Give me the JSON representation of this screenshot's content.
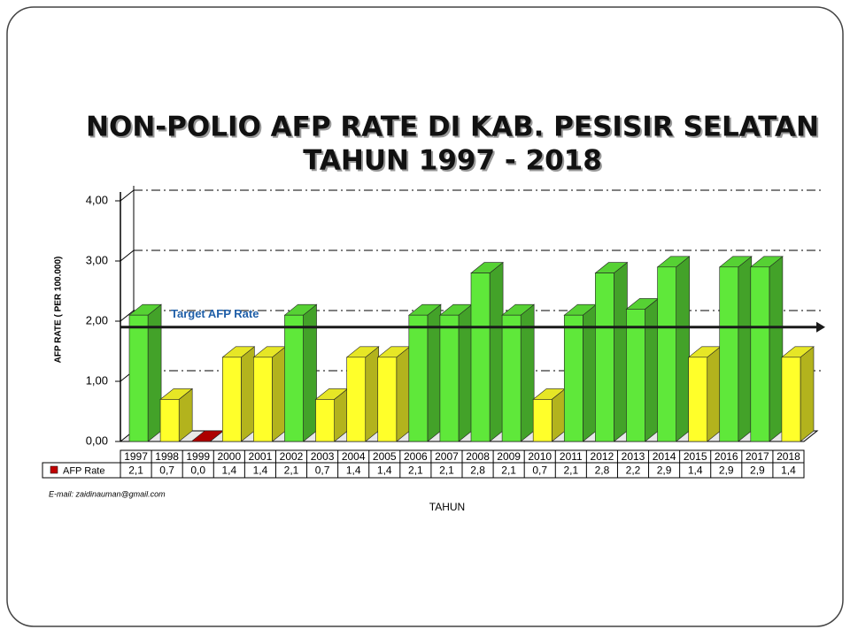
{
  "chart_data": {
    "type": "bar3d",
    "title": "NON-POLIO AFP RATE DI KAB. PESISIR SELATAN",
    "subtitle": "TAHUN 1997  -  2018",
    "x_label": "TAHUN",
    "y_label": "AFP RATE ( PER 100.000)",
    "annotation": "E-mail: zaidinauman@gmail.com",
    "categories": [
      "1997",
      "1998",
      "1999",
      "2000",
      "2001",
      "2002",
      "2003",
      "2004",
      "2005",
      "2006",
      "2007",
      "2008",
      "2009",
      "2010",
      "2011",
      "2012",
      "2013",
      "2014",
      "2015",
      "2016",
      "2017",
      "2018"
    ],
    "series": [
      {
        "name": "AFP Rate",
        "color": "#c00000",
        "values": [
          2.1,
          0.7,
          0.0,
          1.4,
          1.4,
          2.1,
          0.7,
          1.4,
          1.4,
          2.1,
          2.1,
          2.8,
          2.1,
          0.7,
          2.1,
          2.8,
          2.2,
          2.9,
          1.4,
          2.9,
          2.9,
          1.4
        ],
        "value_labels": [
          "2,1",
          "0,7",
          "0,0",
          "1,4",
          "1,4",
          "2,1",
          "0,7",
          "1,4",
          "1,4",
          "2,1",
          "2,1",
          "2,8",
          "2,1",
          "0,7",
          "2,1",
          "2,8",
          "2,2",
          "2,9",
          "1,4",
          "2,9",
          "2,9",
          "1,4"
        ],
        "bar_colors": [
          "#5fe83a",
          "#ffff2a",
          "#c00000",
          "#ffff2a",
          "#ffff2a",
          "#5fe83a",
          "#ffff2a",
          "#ffff2a",
          "#ffff2a",
          "#5fe83a",
          "#5fe83a",
          "#5fe83a",
          "#5fe83a",
          "#ffff2a",
          "#5fe83a",
          "#5fe83a",
          "#5fe83a",
          "#5fe83a",
          "#ffff2a",
          "#5fe83a",
          "#5fe83a",
          "#ffff2a"
        ]
      }
    ],
    "target": {
      "label": "Target AFP Rate",
      "value": 1.9,
      "color": "#1a1a1a"
    },
    "ylim": [
      0,
      4
    ],
    "yticks": [
      {
        "value": 0,
        "label": "0,00"
      },
      {
        "value": 1,
        "label": "1,00"
      },
      {
        "value": 2,
        "label": "2,00"
      },
      {
        "value": 3,
        "label": "3,00"
      },
      {
        "value": 4,
        "label": "4,00"
      }
    ],
    "grid": true
  }
}
